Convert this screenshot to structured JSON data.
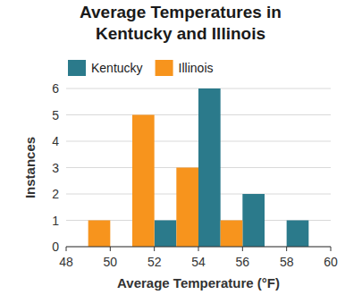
{
  "chart_data": {
    "type": "histogram",
    "title": "Average Temperatures in Kentucky and Illinois",
    "x_label": "Average Temperature (°F)",
    "y_label": "Instances",
    "bins": [
      49,
      50,
      51,
      52,
      53,
      54,
      55,
      56,
      57,
      58,
      59
    ],
    "series": [
      {
        "name": "Kentucky",
        "color": "#2b7a8b",
        "values": [
          0,
          0,
          0,
          1,
          0,
          6,
          0,
          2,
          0,
          1
        ]
      },
      {
        "name": "Illinois",
        "color": "#f7941d",
        "values": [
          1,
          0,
          5,
          0,
          3,
          0,
          1,
          0,
          0,
          0
        ]
      }
    ],
    "xlim": [
      48,
      60
    ],
    "xticks": [
      48,
      50,
      52,
      54,
      56,
      58,
      60
    ],
    "ylim": [
      0,
      6
    ],
    "yticks": [
      0,
      1,
      2,
      3,
      4,
      5,
      6
    ],
    "grid": true,
    "legend": "top-left"
  }
}
